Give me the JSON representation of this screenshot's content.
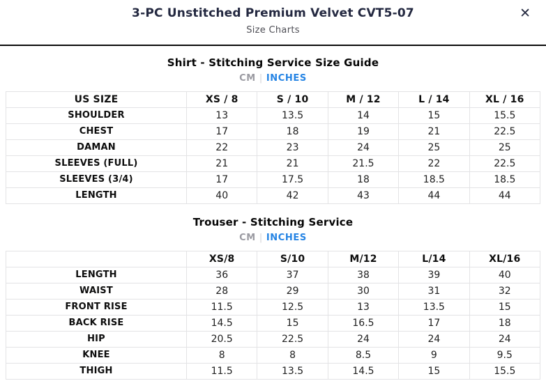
{
  "modal": {
    "title": "3-PC Unstitched Premium Velvet CVT5-07",
    "subtitle": "Size Charts",
    "close_icon": "✕"
  },
  "unit_toggle": {
    "cm_label": "CM",
    "separator": "|",
    "inches_label": "INCHES",
    "active_unit": "INCHES"
  },
  "colors": {
    "active_unit_blue": "#2584e4",
    "inactive_unit_gray": "#9b9ba2",
    "title_dark": "#232840",
    "table_border": "#e3e3e5",
    "header_divider": "#0a0a0a"
  },
  "shirt_chart": {
    "title": "Shirt - Stitching Service Size Guide",
    "columns": [
      "US SIZE",
      "XS / 8",
      "S / 10",
      "M / 12",
      "L / 14",
      "XL / 16"
    ],
    "rows": [
      {
        "label": "SHOULDER",
        "values": [
          "13",
          "13.5",
          "14",
          "15",
          "15.5"
        ]
      },
      {
        "label": "CHEST",
        "values": [
          "17",
          "18",
          "19",
          "21",
          "22.5"
        ]
      },
      {
        "label": "DAMAN",
        "values": [
          "22",
          "23",
          "24",
          "25",
          "25"
        ]
      },
      {
        "label": "SLEEVES (FULL)",
        "values": [
          "21",
          "21",
          "21.5",
          "22",
          "22.5"
        ]
      },
      {
        "label": "SLEEVES (3/4)",
        "values": [
          "17",
          "17.5",
          "18",
          "18.5",
          "18.5"
        ]
      },
      {
        "label": "LENGTH",
        "values": [
          "40",
          "42",
          "43",
          "44",
          "44"
        ]
      }
    ]
  },
  "trouser_chart": {
    "title": "Trouser - Stitching Service",
    "columns": [
      "",
      "XS/8",
      "S/10",
      "M/12",
      "L/14",
      "XL/16"
    ],
    "rows": [
      {
        "label": "LENGTH",
        "values": [
          "36",
          "37",
          "38",
          "39",
          "40"
        ]
      },
      {
        "label": "WAIST",
        "values": [
          "28",
          "29",
          "30",
          "31",
          "32"
        ]
      },
      {
        "label": "FRONT RISE",
        "values": [
          "11.5",
          "12.5",
          "13",
          "13.5",
          "15"
        ]
      },
      {
        "label": "BACK RISE",
        "values": [
          "14.5",
          "15",
          "16.5",
          "17",
          "18"
        ]
      },
      {
        "label": "HIP",
        "values": [
          "20.5",
          "22.5",
          "24",
          "24",
          "24"
        ]
      },
      {
        "label": "KNEE",
        "values": [
          "8",
          "8",
          "8.5",
          "9",
          "9.5"
        ]
      },
      {
        "label": "THIGH",
        "values": [
          "11.5",
          "13.5",
          "14.5",
          "15",
          "15.5"
        ]
      }
    ]
  }
}
